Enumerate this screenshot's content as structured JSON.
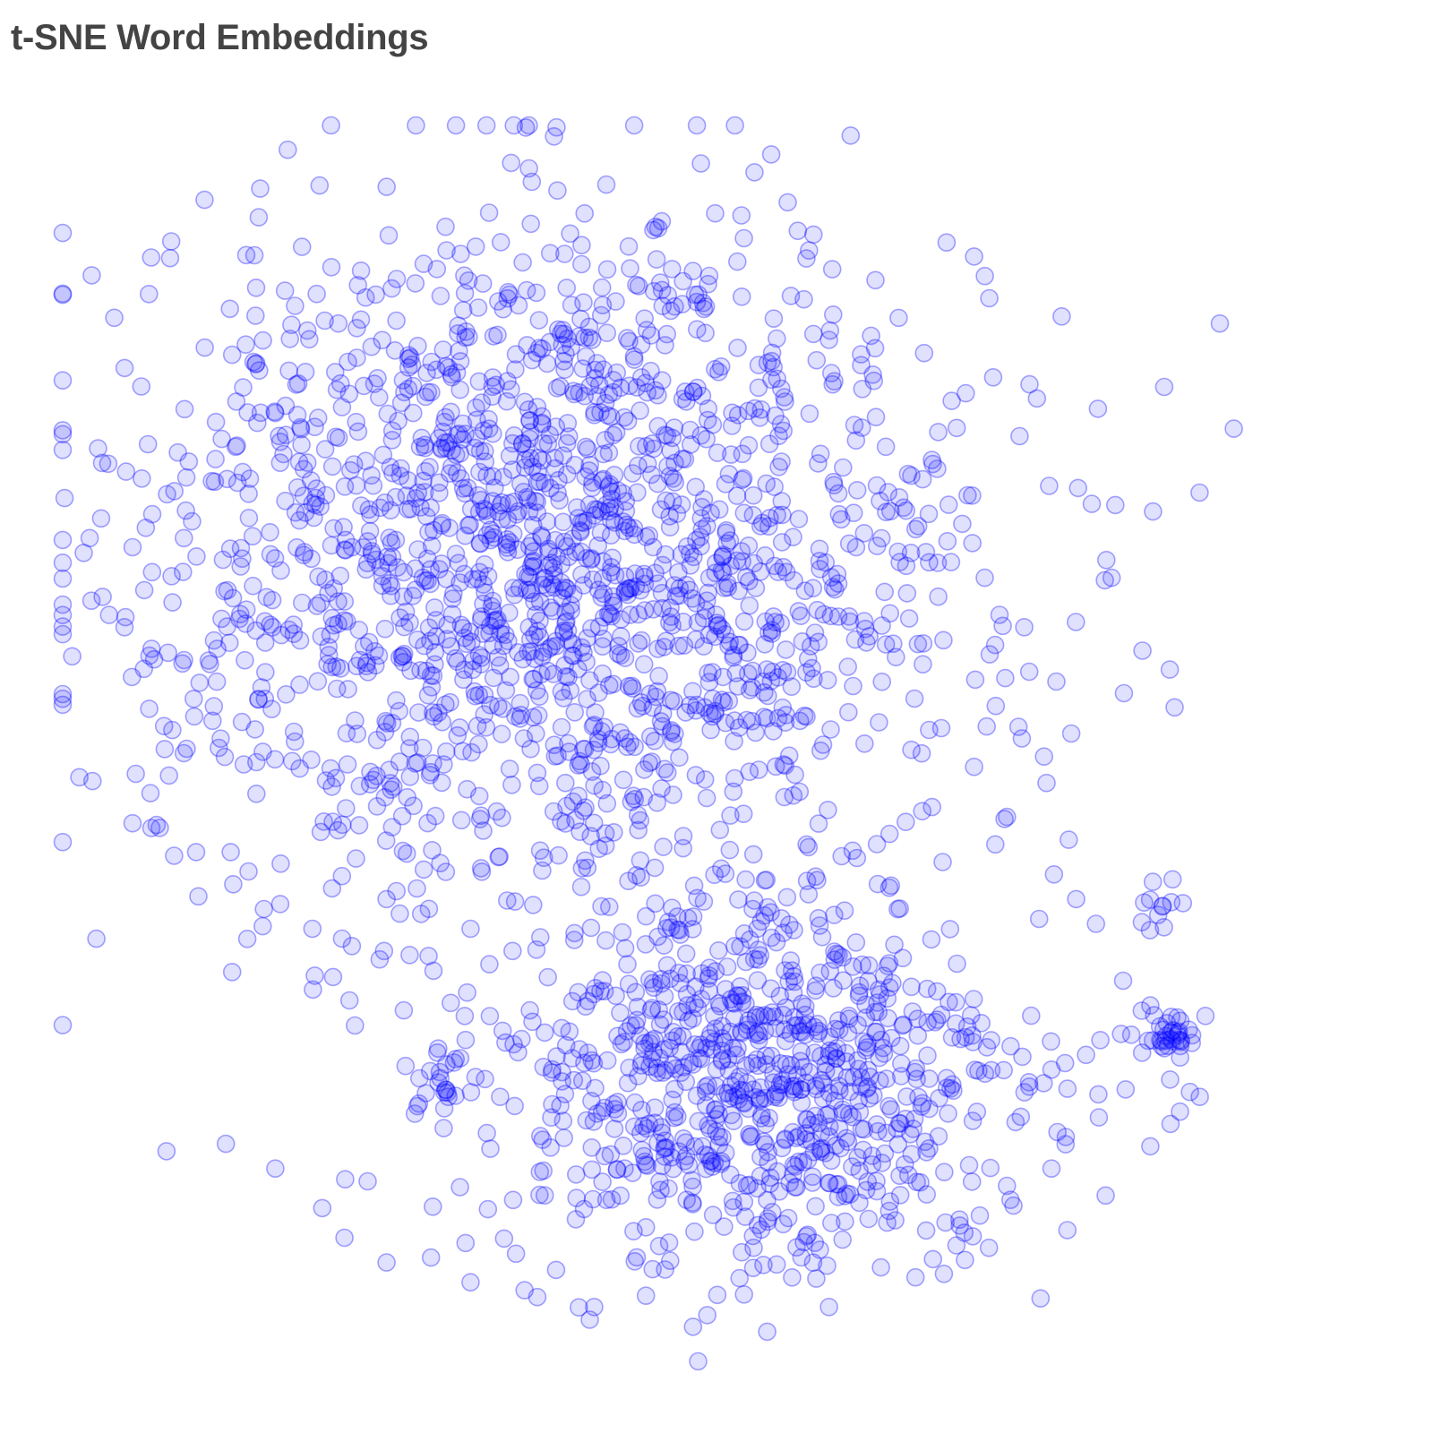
{
  "chart_data": {
    "type": "scatter",
    "title": "t-SNE Word Embeddings",
    "xlabel": "",
    "ylabel": "",
    "grid": false,
    "axes_visible": false,
    "legend": "none",
    "xlim": [
      0,
      100
    ],
    "ylim": [
      0,
      100
    ],
    "series": [
      {
        "marker": "circle",
        "color": "#0000ff",
        "fill_opacity": 0.12,
        "stroke_opacity": 0.35,
        "points": [
          [
            45.8,
            90.2
          ],
          [
            40.6,
            89.6
          ],
          [
            46.6,
            87.0
          ],
          [
            29.2,
            88.8
          ],
          [
            32.2,
            89.6
          ],
          [
            34.0,
            87.2
          ],
          [
            36.0,
            86.0
          ],
          [
            18.8,
            85.4
          ],
          [
            19.8,
            83.4
          ],
          [
            21.2,
            84.2
          ],
          [
            15.6,
            84.6
          ],
          [
            16.2,
            82.6
          ],
          [
            23.8,
            83.6
          ],
          [
            27.0,
            84.2
          ],
          [
            32.0,
            83.8
          ],
          [
            49.2,
            85.0
          ],
          [
            52.0,
            83.2
          ],
          [
            54.6,
            82.0
          ],
          [
            57.4,
            81.6
          ],
          [
            61.0,
            81.0
          ],
          [
            64.6,
            80.6
          ],
          [
            28.0,
            81.4
          ],
          [
            31.2,
            80.4
          ],
          [
            34.8,
            79.6
          ],
          [
            14.6,
            78.8
          ],
          [
            12.4,
            76.0
          ],
          [
            10.2,
            72.8
          ],
          [
            14.0,
            74.0
          ],
          [
            17.6,
            74.4
          ],
          [
            20.4,
            75.6
          ],
          [
            22.6,
            77.2
          ],
          [
            25.6,
            78.0
          ],
          [
            65.8,
            76.4
          ],
          [
            66.6,
            74.0
          ],
          [
            68.4,
            71.8
          ],
          [
            70.4,
            72.6
          ],
          [
            6.6,
            62.4
          ],
          [
            5.0,
            59.4
          ],
          [
            7.4,
            56.8
          ],
          [
            8.2,
            51.4
          ],
          [
            7.0,
            52.8
          ],
          [
            9.8,
            49.2
          ],
          [
            10.6,
            53.6
          ],
          [
            8.6,
            47.4
          ],
          [
            7.6,
            43.4
          ],
          [
            10.8,
            41.2
          ],
          [
            13.8,
            38.6
          ],
          [
            17.6,
            37.0
          ],
          [
            20.2,
            35.0
          ],
          [
            23.4,
            33.6
          ],
          [
            26.0,
            33.2
          ],
          [
            29.6,
            32.8
          ],
          [
            20.4,
            31.2
          ],
          [
            23.2,
            29.2
          ],
          [
            73.6,
            66.2
          ],
          [
            74.6,
            63.4
          ],
          [
            75.8,
            60.4
          ],
          [
            77.8,
            59.4
          ],
          [
            75.0,
            57.2
          ],
          [
            78.2,
            55.8
          ],
          [
            80.4,
            55.0
          ],
          [
            81.6,
            50.8
          ],
          [
            77.6,
            50.4
          ],
          [
            79.6,
            46.8
          ],
          [
            81.4,
            42.2
          ],
          [
            80.2,
            39.4
          ],
          [
            79.0,
            35.8
          ],
          [
            82.0,
            37.4
          ],
          [
            83.6,
            35.4
          ],
          [
            88.2,
            38.8
          ],
          [
            89.8,
            39.0
          ],
          [
            88.0,
            28.8
          ],
          [
            88.8,
            26.0
          ],
          [
            90.2,
            26.4
          ],
          [
            85.8,
            30.8
          ],
          [
            86.0,
            22.0
          ],
          [
            89.6,
            22.8
          ],
          [
            90.4,
            20.2
          ],
          [
            91.2,
            21.8
          ],
          [
            92.0,
            21.4
          ],
          [
            82.8,
            24.8
          ],
          [
            83.8,
            21.6
          ],
          [
            80.0,
            23.6
          ],
          [
            88.0,
            17.4
          ],
          [
            80.0,
            15.6
          ],
          [
            76.4,
            14.2
          ],
          [
            74.2,
            11.8
          ],
          [
            73.0,
            8.2
          ],
          [
            69.0,
            6.8
          ],
          [
            66.2,
            7.6
          ],
          [
            62.0,
            4.4
          ],
          [
            57.0,
            2.4
          ],
          [
            51.0,
            2.8
          ],
          [
            43.0,
            4.4
          ],
          [
            38.4,
            5.2
          ],
          [
            33.0,
            6.4
          ],
          [
            29.8,
            8.4
          ],
          [
            26.2,
            8.0
          ],
          [
            22.8,
            10.0
          ],
          [
            21.0,
            12.4
          ],
          [
            17.2,
            15.6
          ],
          [
            13.2,
            17.6
          ],
          [
            8.4,
            17.0
          ],
          [
            34.6,
            17.2
          ],
          [
            39.6,
            20.8
          ],
          [
            40.4,
            23.4
          ],
          [
            32.6,
            26.0
          ],
          [
            37.8,
            28.4
          ],
          [
            31.2,
            21.4
          ],
          [
            33.4,
            23.0
          ],
          [
            39.0,
            26.6
          ],
          [
            22.6,
            34.2
          ],
          [
            26.2,
            37.4
          ],
          [
            29.0,
            36.2
          ],
          [
            31.0,
            39.6
          ],
          [
            30.0,
            31.6
          ],
          [
            36.4,
            33.2
          ],
          [
            31.4,
            29.0
          ],
          [
            27.6,
            28.4
          ],
          [
            33.0,
            35.0
          ]
        ],
        "clusters": [
          {
            "cx": 40.0,
            "cy": 65.0,
            "sx": 17.0,
            "sy": 13.5,
            "count": 1700
          },
          {
            "cx": 56.5,
            "cy": 22.5,
            "sx": 10.5,
            "sy": 7.8,
            "count": 820
          },
          {
            "cx": 89.6,
            "cy": 26.4,
            "sx": 1.2,
            "sy": 1.0,
            "count": 34
          },
          {
            "cx": 88.6,
            "cy": 36.4,
            "sx": 0.9,
            "sy": 0.7,
            "count": 10
          },
          {
            "cx": 30.6,
            "cy": 22.6,
            "sx": 0.9,
            "sy": 2.2,
            "count": 16
          }
        ]
      }
    ]
  }
}
